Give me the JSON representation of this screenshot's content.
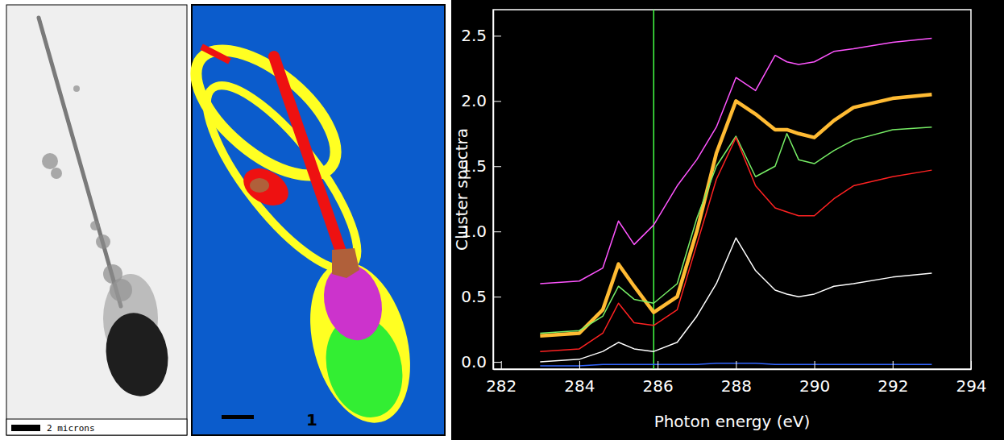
{
  "chart_data": {
    "type": "line",
    "xlabel": "Photon energy (eV)",
    "ylabel": "Cluster spectra",
    "x": [
      283,
      284,
      284.6,
      285,
      285.4,
      285.9,
      286.5,
      287,
      287.5,
      288,
      288.5,
      289,
      289.3,
      289.6,
      290,
      290.5,
      291,
      292,
      293
    ],
    "series": [
      {
        "color": "#ff55ff",
        "values": [
          0.6,
          0.62,
          0.72,
          1.08,
          0.9,
          1.05,
          1.35,
          1.55,
          1.8,
          2.18,
          2.08,
          2.35,
          2.3,
          2.28,
          2.3,
          2.38,
          2.4,
          2.45,
          2.48
        ]
      },
      {
        "color": "#ffbb33",
        "line_style": "thick",
        "values": [
          0.2,
          0.22,
          0.4,
          0.75,
          0.58,
          0.38,
          0.5,
          1.0,
          1.6,
          2.0,
          1.9,
          1.78,
          1.78,
          1.75,
          1.72,
          1.85,
          1.95,
          2.02,
          2.05
        ]
      },
      {
        "color": "#77ee66",
        "values": [
          0.22,
          0.24,
          0.35,
          0.58,
          0.48,
          0.45,
          0.6,
          1.1,
          1.5,
          1.73,
          1.42,
          1.5,
          1.75,
          1.55,
          1.52,
          1.62,
          1.7,
          1.78,
          1.8
        ]
      },
      {
        "color": "#ff2222",
        "values": [
          0.08,
          0.1,
          0.22,
          0.45,
          0.3,
          0.28,
          0.4,
          0.9,
          1.4,
          1.72,
          1.35,
          1.18,
          1.15,
          1.12,
          1.12,
          1.25,
          1.35,
          1.42,
          1.47
        ]
      },
      {
        "color": "#ffffff",
        "values": [
          0.0,
          0.02,
          0.08,
          0.15,
          0.1,
          0.08,
          0.15,
          0.35,
          0.6,
          0.95,
          0.7,
          0.55,
          0.52,
          0.5,
          0.52,
          0.58,
          0.6,
          0.65,
          0.68
        ]
      },
      {
        "color": "#3366ff",
        "values": [
          -0.03,
          -0.03,
          -0.02,
          -0.02,
          -0.02,
          -0.02,
          -0.02,
          -0.02,
          -0.01,
          -0.01,
          -0.01,
          -0.02,
          -0.02,
          -0.02,
          -0.02,
          -0.02,
          -0.02,
          -0.02,
          -0.02
        ]
      }
    ],
    "vline": 285.9,
    "xlim": [
      281.8,
      294
    ],
    "ylim": [
      -0.055,
      2.7
    ],
    "xticks": [
      282,
      284,
      286,
      288,
      290,
      292,
      294
    ],
    "yticks": [
      {
        "value": 0,
        "label": "0.0"
      },
      {
        "value": 0.5,
        "label": "0.5"
      },
      {
        "value": 1,
        "label": "1.0"
      },
      {
        "value": 1.5,
        "label": "1.5"
      },
      {
        "value": 2,
        "label": "2.0"
      },
      {
        "value": 2.5,
        "label": "2.5"
      }
    ]
  },
  "images": [
    {
      "label": "2 microns"
    },
    {
      "label": "1"
    }
  ]
}
